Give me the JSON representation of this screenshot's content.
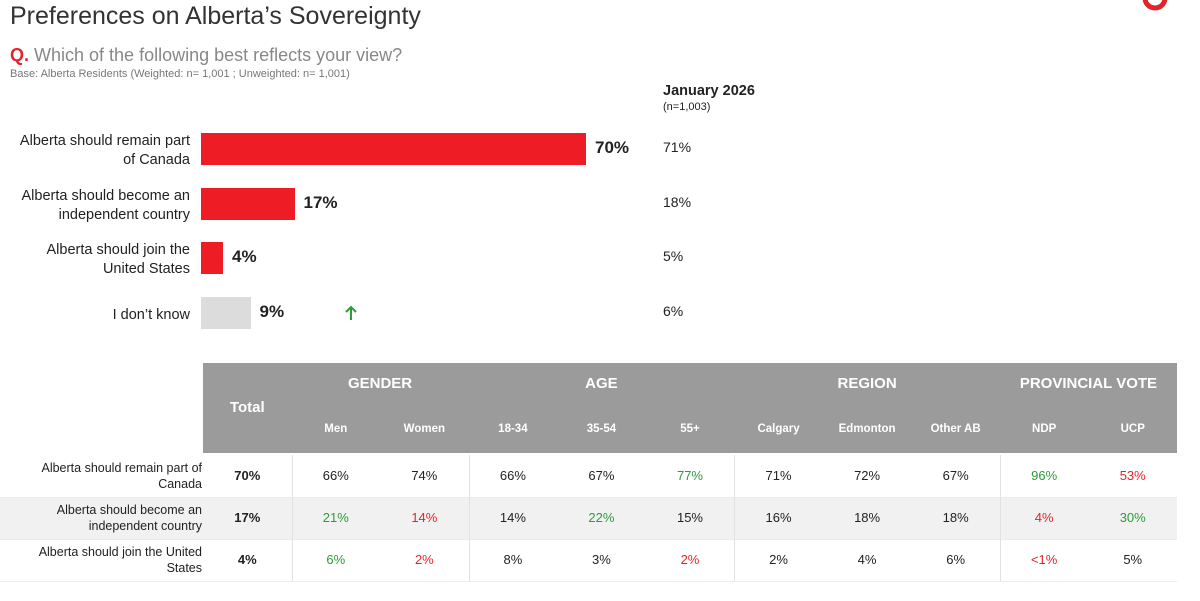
{
  "chart_data": {
    "type": "bar",
    "orientation": "horizontal",
    "title": "Preferences on Alberta’s Sovereignty",
    "question_marker": "Q.",
    "question": "Which of the following best reflects your view?",
    "base": "Base: Alberta Residents (Weighted: n= 1,001 ; Unweighted: n= 1,001)",
    "categories": [
      "Alberta should remain part of Canada",
      "Alberta should become an independent country",
      "Alberta should join the United States",
      "I don’t know"
    ],
    "values": [
      70,
      17,
      4,
      9
    ],
    "value_labels": [
      "70%",
      "17%",
      "4%",
      "9%"
    ],
    "colors": [
      "#ee1c25",
      "#ee1c25",
      "#ee1c25",
      "#dcdcdc"
    ],
    "significant_up": [
      false,
      false,
      false,
      true
    ],
    "xlim": [
      0,
      100
    ],
    "comparison": {
      "title": "January 2026",
      "subtitle": "(n=1,003)",
      "values": [
        71,
        18,
        5,
        6
      ],
      "value_labels": [
        "71%",
        "18%",
        "5%",
        "6%"
      ]
    }
  },
  "table": {
    "total_header": "Total",
    "groups": [
      {
        "name": "GENDER",
        "columns": [
          "Men",
          "Women"
        ]
      },
      {
        "name": "AGE",
        "columns": [
          "18-34",
          "35-54",
          "55+"
        ]
      },
      {
        "name": "REGION",
        "columns": [
          "Calgary",
          "Edmonton",
          "Other AB"
        ]
      },
      {
        "name": "PROVINCIAL VOTE",
        "columns": [
          "NDP",
          "UCP"
        ]
      }
    ],
    "rows": [
      {
        "label": "Alberta should remain part of Canada",
        "values": [
          "70%",
          "66%",
          "74%",
          "66%",
          "67%",
          "77%",
          "71%",
          "72%",
          "67%",
          "96%",
          "53%"
        ],
        "colors": [
          "#222222",
          "#222222",
          "#222222",
          "#222222",
          "#222222",
          "#2e9a3a",
          "#222222",
          "#222222",
          "#222222",
          "#2e9a3a",
          "#e0262c"
        ]
      },
      {
        "label": "Alberta should become an independent country",
        "values": [
          "17%",
          "21%",
          "14%",
          "14%",
          "22%",
          "15%",
          "16%",
          "18%",
          "18%",
          "4%",
          "30%"
        ],
        "colors": [
          "#222222",
          "#2e9a3a",
          "#e0262c",
          "#222222",
          "#2e9a3a",
          "#222222",
          "#222222",
          "#222222",
          "#222222",
          "#e0262c",
          "#2e9a3a"
        ]
      },
      {
        "label": "Alberta should join the United States",
        "values": [
          "4%",
          "6%",
          "2%",
          "8%",
          "3%",
          "2%",
          "2%",
          "4%",
          "6%",
          "<1%",
          "5%"
        ],
        "colors": [
          "#222222",
          "#2e9a3a",
          "#e0262c",
          "#222222",
          "#222222",
          "#e0262c",
          "#222222",
          "#222222",
          "#222222",
          "#e0262c",
          "#222222"
        ]
      }
    ]
  }
}
